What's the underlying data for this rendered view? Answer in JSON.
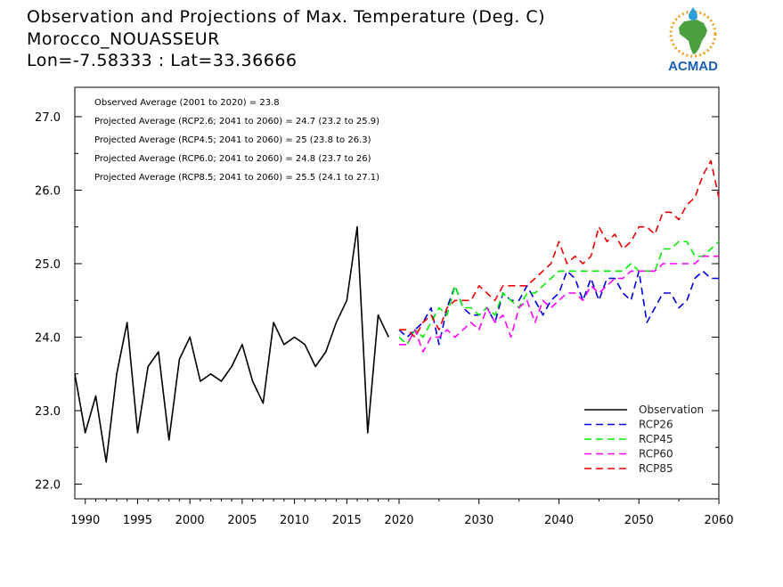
{
  "title": {
    "line1": "Observation and Projections of Max. Temperature (Deg. C)",
    "line2": "Morocco_NOUASSEUR",
    "line3": "Lon=-7.58333 : Lat=33.36666"
  },
  "logo": {
    "text": "ACMAD",
    "colors": {
      "africa": "#4aa03c",
      "ring": "#f0a020",
      "drop": "#2a9fd8",
      "text": "#1a5fb4"
    }
  },
  "annotations": [
    "Observed Average (2001 to 2020) = 23.8",
    "Projected Average (RCP2.6; 2041 to 2060) = 24.7 (23.2 to 25.9)",
    "Projected Average (RCP4.5; 2041 to 2060) = 25 (23.8 to 26.3)",
    "Projected Average (RCP6.0; 2041 to 2060) = 24.8 (23.7 to 26)",
    "Projected Average (RCP8.5; 2041 to 2060) = 25.5 (24.1 to 27.1)"
  ],
  "chart_data": {
    "type": "line",
    "xlim": [
      1989,
      2060
    ],
    "ylim": [
      21.8,
      27.4
    ],
    "x_ticks": [
      1990,
      1995,
      2000,
      2005,
      2010,
      2015,
      2020,
      2030,
      2040,
      2050,
      2060
    ],
    "y_ticks": [
      22.0,
      23.0,
      24.0,
      25.0,
      26.0,
      27.0
    ],
    "x_break": [
      2020,
      2060
    ],
    "grid": false,
    "legend_position": "bottom-right",
    "series": [
      {
        "name": "Observation",
        "color": "#000000",
        "dash": false,
        "x": [
          1989,
          1990,
          1991,
          1992,
          1993,
          1994,
          1995,
          1996,
          1997,
          1998,
          1999,
          2000,
          2001,
          2002,
          2003,
          2004,
          2005,
          2006,
          2007,
          2008,
          2009,
          2010,
          2011,
          2012,
          2013,
          2014,
          2015,
          2016,
          2017,
          2018,
          2019
        ],
        "y": [
          23.5,
          22.7,
          23.2,
          22.3,
          23.5,
          24.2,
          22.7,
          23.6,
          23.8,
          22.6,
          23.7,
          24.0,
          23.4,
          23.5,
          23.4,
          23.6,
          23.9,
          23.4,
          23.1,
          24.2,
          23.9,
          24.0,
          23.9,
          23.6,
          23.8,
          24.2,
          24.5,
          25.5,
          22.7,
          24.3,
          24.0
        ]
      },
      {
        "name": "RCP26",
        "color": "#0000dd",
        "dash": true,
        "x": [
          2020,
          2021,
          2022,
          2023,
          2024,
          2025,
          2026,
          2027,
          2028,
          2029,
          2030,
          2031,
          2032,
          2033,
          2034,
          2035,
          2036,
          2037,
          2038,
          2039,
          2040,
          2041,
          2042,
          2043,
          2044,
          2045,
          2046,
          2047,
          2048,
          2049,
          2050,
          2051,
          2052,
          2053,
          2054,
          2055,
          2056,
          2057,
          2058,
          2059,
          2060
        ],
        "y": [
          24.1,
          24.0,
          24.1,
          24.2,
          24.4,
          23.9,
          24.4,
          24.7,
          24.4,
          24.3,
          24.3,
          24.4,
          24.2,
          24.6,
          24.5,
          24.5,
          24.7,
          24.5,
          24.3,
          24.5,
          24.6,
          24.9,
          24.8,
          24.5,
          24.8,
          24.5,
          24.8,
          24.8,
          24.6,
          24.5,
          24.9,
          24.2,
          24.4,
          24.6,
          24.6,
          24.4,
          24.5,
          24.8,
          24.9,
          24.8,
          24.8
        ]
      },
      {
        "name": "RCP45",
        "color": "#00ee00",
        "dash": true,
        "x": [
          2020,
          2021,
          2022,
          2023,
          2024,
          2025,
          2026,
          2027,
          2028,
          2029,
          2030,
          2031,
          2032,
          2033,
          2034,
          2035,
          2036,
          2037,
          2038,
          2039,
          2040,
          2041,
          2042,
          2043,
          2044,
          2045,
          2046,
          2047,
          2048,
          2049,
          2050,
          2051,
          2052,
          2053,
          2054,
          2055,
          2056,
          2057,
          2058,
          2059,
          2060
        ],
        "y": [
          24.0,
          23.9,
          24.1,
          24.0,
          24.2,
          24.4,
          24.3,
          24.7,
          24.4,
          24.4,
          24.3,
          24.4,
          24.3,
          24.6,
          24.5,
          24.4,
          24.6,
          24.6,
          24.7,
          24.8,
          24.9,
          24.9,
          24.9,
          24.9,
          24.9,
          24.9,
          24.9,
          24.9,
          24.9,
          25.0,
          24.9,
          24.9,
          24.9,
          25.2,
          25.2,
          25.3,
          25.3,
          25.1,
          25.1,
          25.2,
          25.3
        ]
      },
      {
        "name": "RCP60",
        "color": "#ff00ff",
        "dash": true,
        "x": [
          2020,
          2021,
          2022,
          2023,
          2024,
          2025,
          2026,
          2027,
          2028,
          2029,
          2030,
          2031,
          2032,
          2033,
          2034,
          2035,
          2036,
          2037,
          2038,
          2039,
          2040,
          2041,
          2042,
          2043,
          2044,
          2045,
          2046,
          2047,
          2048,
          2049,
          2050,
          2051,
          2052,
          2053,
          2054,
          2055,
          2056,
          2057,
          2058,
          2059,
          2060
        ],
        "y": [
          23.9,
          23.9,
          24.1,
          23.8,
          24.0,
          24.0,
          24.1,
          24.0,
          24.1,
          24.2,
          24.1,
          24.4,
          24.2,
          24.3,
          24.0,
          24.4,
          24.5,
          24.2,
          24.5,
          24.4,
          24.5,
          24.6,
          24.6,
          24.5,
          24.7,
          24.6,
          24.7,
          24.8,
          24.8,
          24.9,
          24.9,
          24.9,
          24.9,
          25.0,
          25.0,
          25.0,
          25.0,
          25.0,
          25.1,
          25.1,
          25.1
        ]
      },
      {
        "name": "RCP85",
        "color": "#ee0000",
        "dash": true,
        "x": [
          2020,
          2021,
          2022,
          2023,
          2024,
          2025,
          2026,
          2027,
          2028,
          2029,
          2030,
          2031,
          2032,
          2033,
          2034,
          2035,
          2036,
          2037,
          2038,
          2039,
          2040,
          2041,
          2042,
          2043,
          2044,
          2045,
          2046,
          2047,
          2048,
          2049,
          2050,
          2051,
          2052,
          2053,
          2054,
          2055,
          2056,
          2057,
          2058,
          2059,
          2060
        ],
        "y": [
          24.1,
          24.1,
          24.0,
          24.2,
          24.3,
          24.1,
          24.4,
          24.5,
          24.5,
          24.5,
          24.7,
          24.6,
          24.5,
          24.7,
          24.7,
          24.7,
          24.7,
          24.8,
          24.9,
          25.0,
          25.3,
          25.0,
          25.1,
          25.0,
          25.1,
          25.5,
          25.3,
          25.4,
          25.2,
          25.3,
          25.5,
          25.5,
          25.4,
          25.7,
          25.7,
          25.6,
          25.8,
          25.9,
          26.2,
          26.4,
          25.9
        ]
      }
    ]
  }
}
